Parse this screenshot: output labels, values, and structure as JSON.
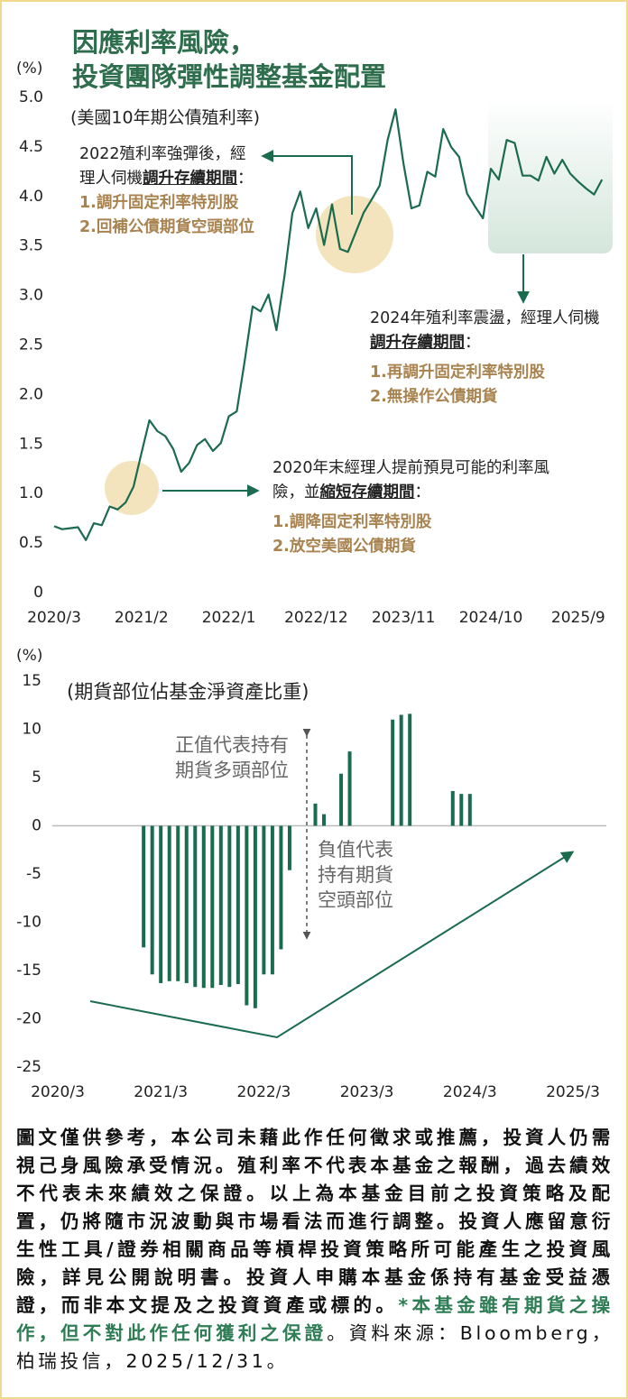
{
  "header": {
    "title": [
      "因應利率風險，",
      "投資團隊彈性調整基金配置"
    ]
  },
  "chart_data": [
    {
      "type": "line",
      "unit": "(%)",
      "subtitle": "(美國10年期公債殖利率)",
      "color": "#1b6b4f",
      "categories": [
        "2020/3",
        null,
        null,
        null,
        null,
        null,
        null,
        null,
        null,
        null,
        null,
        "2021/2",
        null,
        null,
        null,
        null,
        null,
        null,
        null,
        null,
        null,
        null,
        "2022/1",
        null,
        null,
        null,
        null,
        null,
        null,
        null,
        null,
        null,
        null,
        "2022/12",
        null,
        null,
        null,
        null,
        null,
        null,
        null,
        null,
        null,
        null,
        "2023/11",
        null,
        null,
        null,
        null,
        null,
        null,
        null,
        null,
        null,
        null,
        "2024/10",
        null,
        null,
        null,
        null,
        null,
        null,
        null,
        null,
        null,
        null,
        "2025/9",
        null,
        null,
        null
      ],
      "values": [
        0.67,
        0.64,
        0.65,
        0.66,
        0.53,
        0.7,
        0.68,
        0.87,
        0.84,
        0.91,
        1.07,
        1.41,
        1.74,
        1.63,
        1.58,
        1.45,
        1.22,
        1.31,
        1.49,
        1.55,
        1.43,
        1.51,
        1.78,
        1.83,
        2.34,
        2.89,
        2.84,
        3.01,
        2.65,
        3.19,
        3.83,
        4.05,
        3.68,
        3.88,
        3.51,
        3.92,
        3.47,
        3.44,
        3.64,
        3.84,
        3.97,
        4.11,
        4.57,
        4.88,
        4.33,
        3.88,
        3.91,
        4.25,
        4.2,
        4.68,
        4.5,
        4.4,
        4.03,
        3.9,
        3.78,
        4.28,
        4.17,
        4.57,
        4.54,
        4.21,
        4.21,
        4.16,
        4.4,
        4.23,
        4.37,
        4.23,
        4.15,
        4.08,
        4.02,
        4.17
      ],
      "ylim": [
        0,
        5
      ],
      "yticks": [
        0,
        0.5,
        {
          "value": 1,
          "label": "1.0"
        },
        1.5,
        {
          "value": 2,
          "label": "2.0"
        },
        2.5,
        {
          "value": 3,
          "label": "3.0"
        },
        3.5,
        {
          "value": 4,
          "label": "4.0"
        },
        4.5,
        {
          "value": 5,
          "label": "5.0"
        }
      ],
      "annotations": [
        {
          "lead": "2022殖利率強彈後，經理人伺機",
          "emphasis": "調升存續期間",
          "colon": "：",
          "actions": [
            "1.調升固定利率特別股 2.回補公債期貨空頭部位"
          ]
        },
        {
          "lead": "2024年殖利率震盪，經理人伺機",
          "emphasis": "調升存續期間",
          "colon": "：",
          "actions": [
            "1.再調升固定利率特別股",
            "2.無操作公債期貨"
          ]
        },
        {
          "lead": "2020年末經理人提前預見可能的利率風險，並",
          "emphasis": "縮短存續期間",
          "colon": "：",
          "actions": [
            "1.調降固定利率特別股",
            "2.放空美國公債期貨"
          ]
        }
      ]
    },
    {
      "type": "bar",
      "unit": "(%)",
      "subtitle": "(期貨部位佔基金淨資產比重)",
      "color": "#1b6b4f",
      "categories": [
        "2020/3",
        null,
        null,
        null,
        null,
        null,
        null,
        null,
        null,
        null,
        null,
        null,
        "2021/3",
        null,
        null,
        null,
        null,
        null,
        null,
        null,
        null,
        null,
        null,
        null,
        "2022/3",
        null,
        null,
        null,
        null,
        null,
        null,
        null,
        null,
        null,
        null,
        null,
        "2023/3",
        null,
        null,
        null,
        null,
        null,
        null,
        null,
        null,
        null,
        null,
        null,
        "2024/3",
        null,
        null,
        null,
        null,
        null,
        null,
        null,
        null,
        null,
        null,
        null,
        "2025/3"
      ],
      "values": [
        null,
        null,
        null,
        null,
        null,
        null,
        null,
        null,
        null,
        null,
        -12.6,
        -15.4,
        -16.3,
        -16.1,
        -16.1,
        -16.3,
        -16.7,
        -16.8,
        -16.8,
        -16.5,
        -16.7,
        -16.4,
        -18.6,
        -18.9,
        -15.4,
        -15.4,
        -12.8,
        -4.6,
        null,
        null,
        2.3,
        1.2,
        null,
        5.4,
        7.7,
        null,
        null,
        null,
        null,
        11,
        11.5,
        11.6,
        null,
        null,
        null,
        null,
        3.6,
        3.3,
        3.3,
        null,
        null,
        null,
        null,
        null,
        null,
        null,
        null,
        null,
        null,
        null,
        null
      ],
      "ylim": [
        -25,
        15
      ],
      "yticks": [
        15,
        10,
        5,
        0,
        -5,
        -10,
        -15,
        -20,
        -25
      ],
      "annotations": [
        {
          "lines": [
            "正值代表持有",
            "期貨多頭部位"
          ]
        },
        {
          "lines": [
            "負值代表",
            "持有期貨",
            "空頭部位"
          ]
        }
      ]
    }
  ],
  "footer": {
    "main": "圖文僅供參考，本公司未藉此作任何徵求或推薦，投資人仍需視己身風險承受情況。殖利率不代表本基金之報酬，過去績效不代表未來績效之保證。以上為本基金目前之投資策略及配置，仍將隨市況波動與市場看法而進行調整。投資人應留意衍生性工具/證券相關商品等槓桿投資策略所可能產生之投資風險，詳見公開說明書。投資人申購本基金係持有基金受益憑證，而非本文提及之投資資產或標的。",
    "warning": "*本基金雖有期貨之操作，但不對此作任何獲利之保證",
    "source": "。資料來源：Bloomberg，柏瑞投信，2025/12/31。"
  }
}
